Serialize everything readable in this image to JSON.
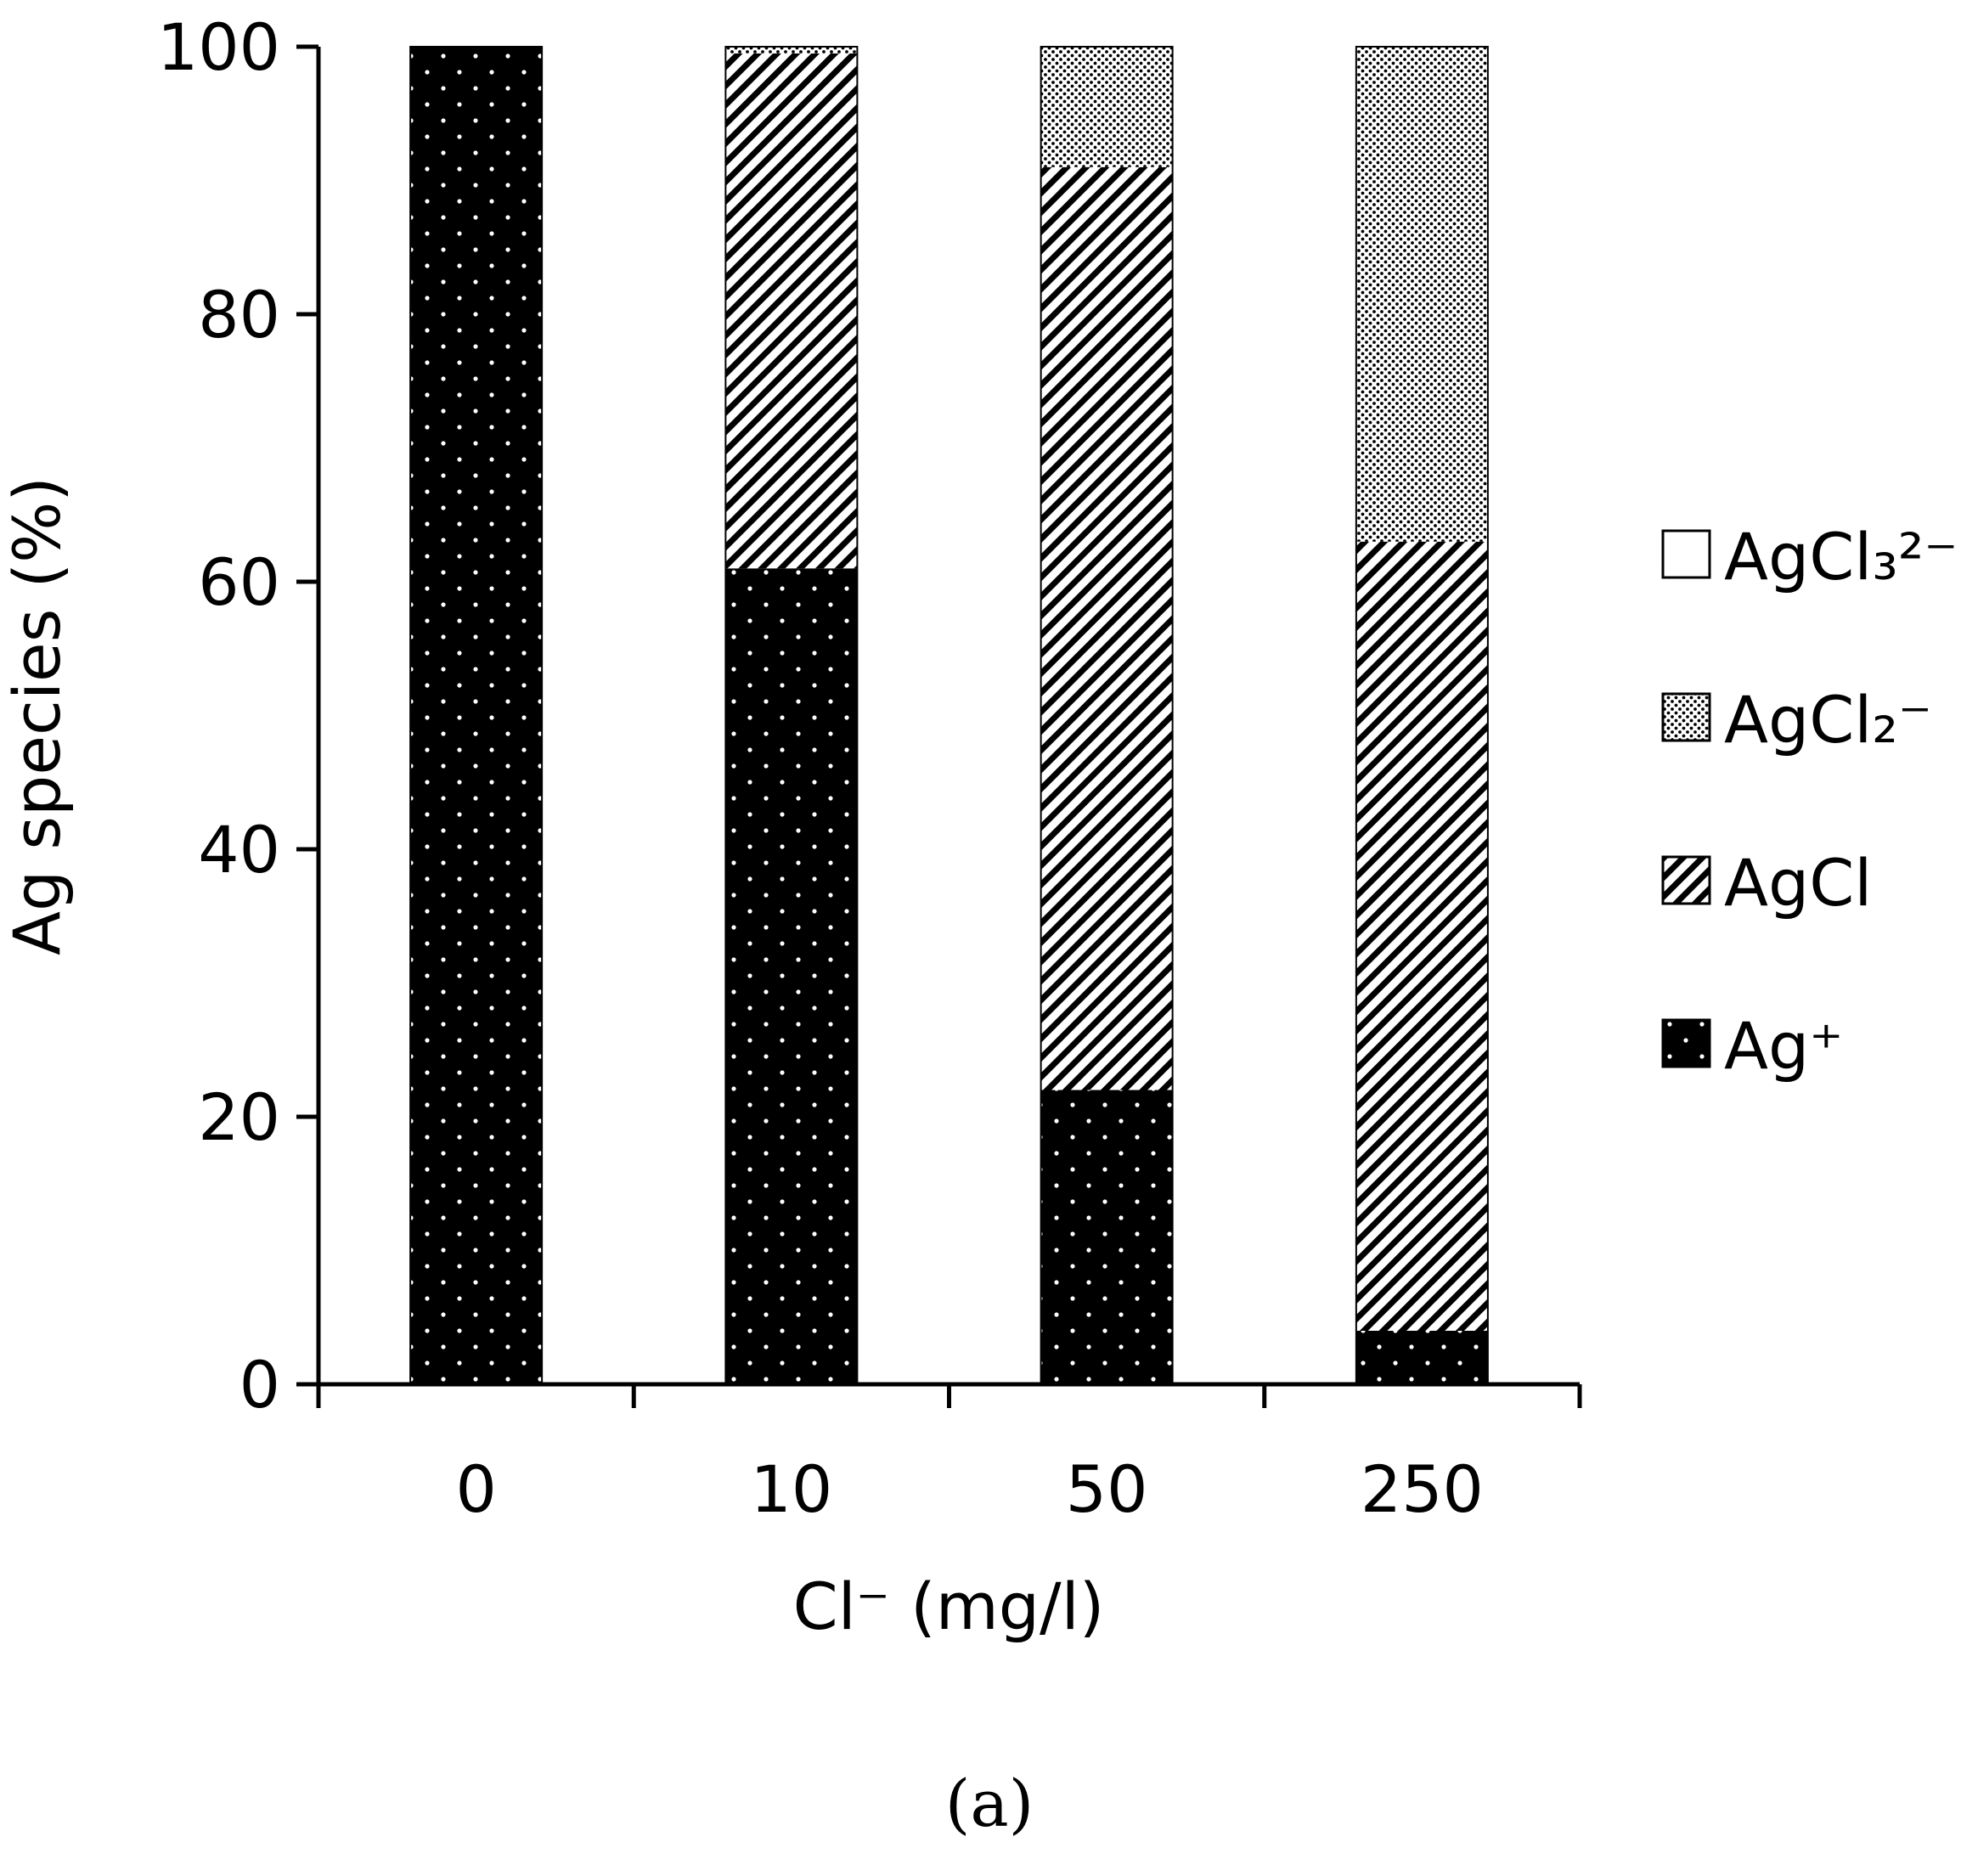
{
  "chart_data": {
    "type": "bar",
    "stacked": true,
    "categories": [
      "0",
      "10",
      "50",
      "250"
    ],
    "series": [
      {
        "name": "Ag⁺",
        "pattern": "dots-on-black",
        "values": [
          100,
          61,
          22,
          4
        ]
      },
      {
        "name": "AgCl",
        "pattern": "diagonal-hatch",
        "values": [
          0,
          38.5,
          69,
          59
        ]
      },
      {
        "name": "AgCl₂⁻",
        "pattern": "fine-dots",
        "values": [
          0,
          0.5,
          9,
          37
        ]
      },
      {
        "name": "AgCl₃²⁻",
        "pattern": "white",
        "values": [
          0,
          0,
          0,
          0
        ]
      }
    ],
    "yticks": [
      "0",
      "20",
      "40",
      "60",
      "80",
      "100"
    ],
    "xlabel": "Cl⁻ (mg/l)",
    "ylabel": "Ag species (%)",
    "ylim": [
      0,
      100
    ],
    "grid": false,
    "legend_position": "right",
    "colors": {
      "fill_dark": "#000000",
      "fill_light": "#ffffff",
      "line": "#000000"
    }
  },
  "panel_label": "(a)"
}
